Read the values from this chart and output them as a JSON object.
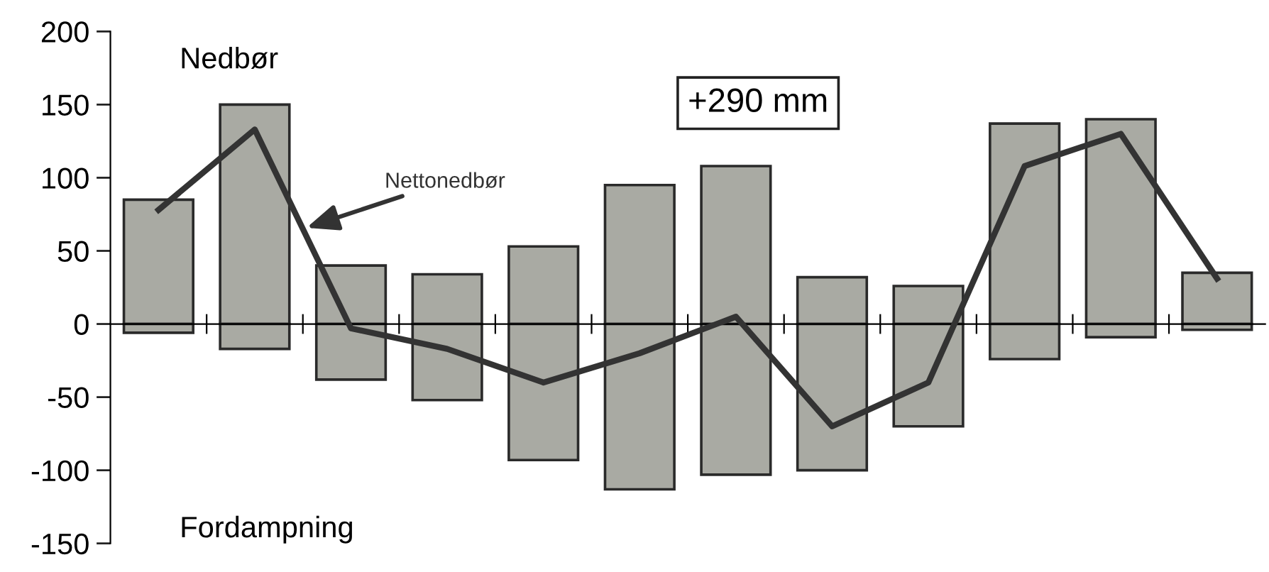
{
  "chart_data": {
    "type": "bar",
    "stacked": true,
    "categories": [
      null,
      null,
      null,
      null,
      null,
      null,
      null,
      null,
      null,
      null,
      null,
      null
    ],
    "series": [
      {
        "color": "#a9aaa3",
        "values": [
          85,
          150,
          40,
          34,
          53,
          95,
          108,
          32,
          26,
          137,
          140,
          35
        ]
      },
      {
        "color": "#a9aaa3",
        "values": [
          -6,
          -17,
          -38,
          -52,
          -93,
          -113,
          -103,
          -100,
          -70,
          -24,
          -9,
          -4
        ]
      },
      {
        "name": "Nettonedbør",
        "type": "line",
        "color": "#333333",
        "values": [
          78,
          133,
          -3,
          -17,
          -40,
          -20,
          5,
          -70,
          -40,
          108,
          130,
          31
        ]
      }
    ],
    "annotations": [
      "+290 mm",
      "Nedbør",
      "Fordampning"
    ],
    "ylim": [
      -150,
      200
    ],
    "yticks": [
      -150,
      -100,
      -50,
      0,
      50,
      100,
      150,
      200
    ],
    "tick_labels": "y",
    "legend": false,
    "marker": "none",
    "line_style": "solid"
  }
}
